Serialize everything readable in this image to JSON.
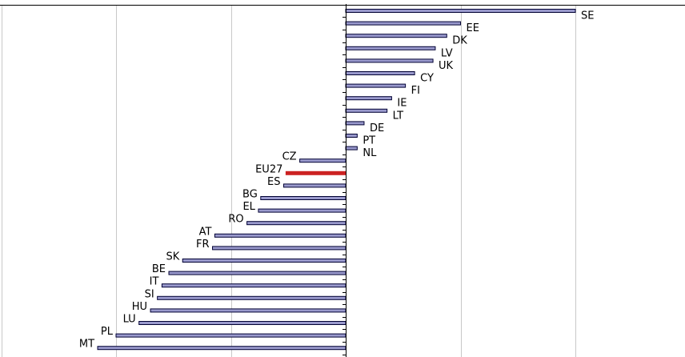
{
  "colors": {
    "bar_fill": "#9999cc",
    "bar_stroke": "#000033",
    "highlight_fill": "#cc2222",
    "grid": "#c8c8c8",
    "axis": "#000000"
  },
  "chart_data": {
    "type": "bar",
    "orientation": "horizontal",
    "title": "",
    "xlabel": "",
    "ylabel": "",
    "xlim": [
      -15,
      10
    ],
    "grid": true,
    "legend": "none",
    "highlight": "EU27",
    "categories": [
      "SE",
      "EE",
      "DK",
      "LV",
      "UK",
      "CY",
      "FI",
      "IE",
      "LT",
      "DE",
      "PT",
      "NL",
      "CZ",
      "EU27",
      "ES",
      "BG",
      "EL",
      "RO",
      "AT",
      "FR",
      "SK",
      "BE",
      "IT",
      "SI",
      "HU",
      "LU",
      "PL",
      "MT"
    ],
    "values": [
      10,
      5,
      4.4,
      3.9,
      3.8,
      3,
      2.6,
      2,
      1.8,
      0.8,
      0.5,
      0.5,
      -2,
      -2.6,
      -2.7,
      -3.7,
      -3.8,
      -4.3,
      -5.7,
      -5.8,
      -7.1,
      -7.7,
      -8,
      -8.2,
      -8.5,
      -9,
      -10,
      -10.8
    ]
  }
}
